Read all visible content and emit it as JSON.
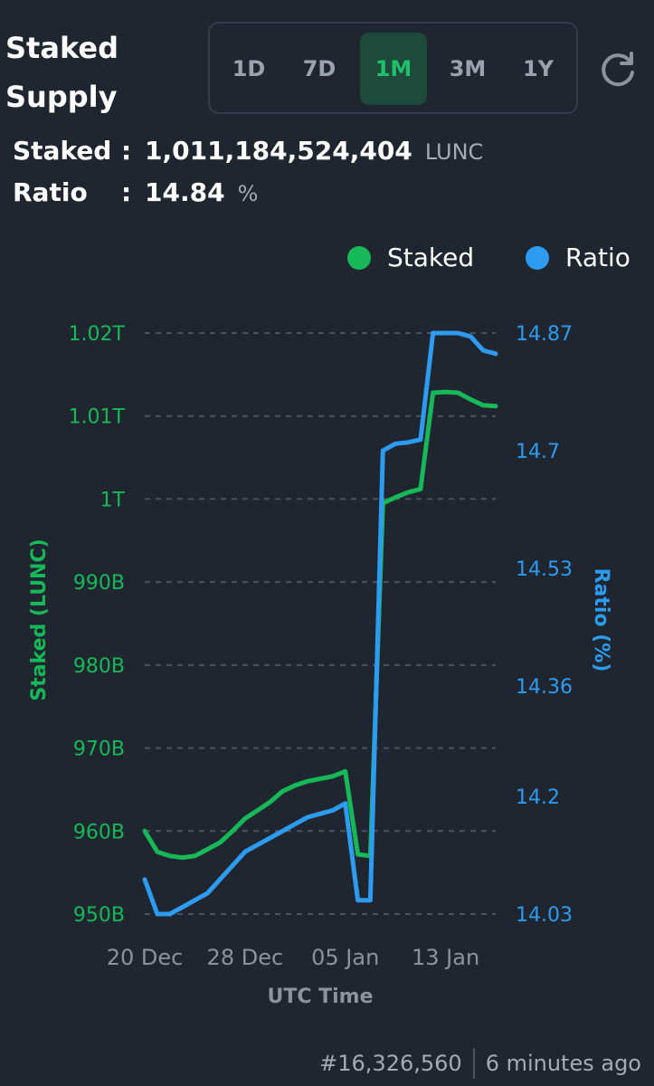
{
  "header": {
    "title": "Staked Supply",
    "timeframes": [
      "1D",
      "7D",
      "1M",
      "3M",
      "1Y"
    ],
    "active_timeframe": "1M",
    "refresh_icon": "refresh-icon"
  },
  "stats": {
    "staked_label": "Staked",
    "staked_value": "1,011,184,524,404",
    "staked_unit": "LUNC",
    "ratio_label": "Ratio",
    "ratio_value": "14.84",
    "ratio_unit": "%",
    "colon": ":"
  },
  "legend": {
    "staked": "Staked",
    "ratio": "Ratio"
  },
  "colors": {
    "staked": "#17b857",
    "ratio": "#2d9bf0",
    "background": "#1f2630",
    "grid": "#4b535e",
    "axis_text": "#8b939c"
  },
  "chart_data": {
    "type": "line",
    "x_ticks": [
      "20 Dec",
      "28 Dec",
      "05 Jan",
      "13 Jan"
    ],
    "xlabel": "UTC Time",
    "left_axis": {
      "label": "Staked (LUNC)",
      "ticks": [
        "950B",
        "960B",
        "970B",
        "980B",
        "990B",
        "1T",
        "1.01T",
        "1.02T"
      ],
      "tick_values": [
        950,
        960,
        970,
        980,
        990,
        1000,
        1010,
        1020
      ],
      "range": [
        950,
        1020
      ],
      "unit": "billions LUNC"
    },
    "right_axis": {
      "label": "Ratio (%)",
      "ticks": [
        "14.03",
        "14.2",
        "14.36",
        "14.53",
        "14.7",
        "14.87"
      ],
      "tick_values": [
        14.03,
        14.2,
        14.36,
        14.53,
        14.7,
        14.87
      ],
      "range": [
        14.03,
        14.87
      ]
    },
    "x_range": [
      "20 Dec",
      "17 Jan"
    ],
    "series": [
      {
        "name": "Staked",
        "axis": "left",
        "x": [
          "20 Dec",
          "21 Dec",
          "22 Dec",
          "23 Dec",
          "24 Dec",
          "25 Dec",
          "26 Dec",
          "27 Dec",
          "28 Dec",
          "29 Dec",
          "30 Dec",
          "31 Dec",
          "01 Jan",
          "02 Jan",
          "03 Jan",
          "04 Jan",
          "05 Jan",
          "06 Jan",
          "07 Jan",
          "08 Jan",
          "09 Jan",
          "10 Jan",
          "11 Jan",
          "12 Jan",
          "13 Jan",
          "14 Jan",
          "15 Jan",
          "16 Jan",
          "17 Jan"
        ],
        "values": [
          960.0,
          957.5,
          957.0,
          956.8,
          957.0,
          957.8,
          958.6,
          960.0,
          961.5,
          962.5,
          963.5,
          964.8,
          965.5,
          966.0,
          966.3,
          966.6,
          967.2,
          957.2,
          957.0,
          999.5,
          1000.2,
          1000.8,
          1001.2,
          1012.8,
          1012.9,
          1012.8,
          1012.0,
          1011.3,
          1011.2
        ]
      },
      {
        "name": "Ratio",
        "axis": "right",
        "x": [
          "20 Dec",
          "21 Dec",
          "22 Dec",
          "23 Dec",
          "24 Dec",
          "25 Dec",
          "26 Dec",
          "27 Dec",
          "28 Dec",
          "29 Dec",
          "30 Dec",
          "31 Dec",
          "01 Jan",
          "02 Jan",
          "03 Jan",
          "04 Jan",
          "05 Jan",
          "06 Jan",
          "07 Jan",
          "08 Jan",
          "09 Jan",
          "10 Jan",
          "11 Jan",
          "12 Jan",
          "13 Jan",
          "14 Jan",
          "15 Jan",
          "16 Jan",
          "17 Jan"
        ],
        "values": [
          14.08,
          14.03,
          14.03,
          14.04,
          14.05,
          14.06,
          14.08,
          14.1,
          14.12,
          14.13,
          14.14,
          14.15,
          14.16,
          14.17,
          14.175,
          14.18,
          14.19,
          14.05,
          14.05,
          14.7,
          14.71,
          14.712,
          14.716,
          14.87,
          14.87,
          14.87,
          14.865,
          14.845,
          14.84
        ]
      }
    ],
    "grid": "horizontal dashed",
    "legend_position": "top-right"
  },
  "footer": {
    "block": "#16,326,560",
    "updated": "6 minutes ago"
  }
}
